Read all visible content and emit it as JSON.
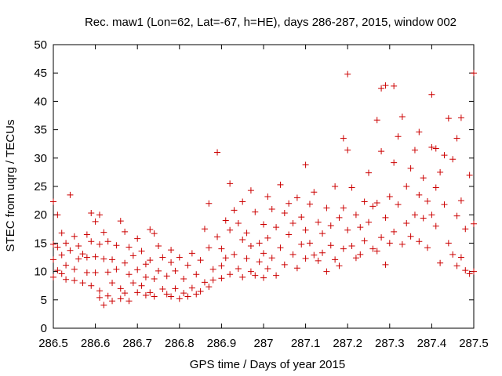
{
  "chart_data": {
    "type": "scatter",
    "title": "Rec. maw1 (Lon=62, Lat=-67, h=HE), days 286-287, 2015, window 002",
    "xlabel": "GPS time / Days of year 2015",
    "ylabel": "STEC from uqrg / TECUs",
    "xlim": [
      286.5,
      287.5
    ],
    "ylim": [
      0,
      50
    ],
    "xticks": [
      286.5,
      286.6,
      286.7,
      286.8,
      286.9,
      287,
      287.1,
      287.2,
      287.3,
      287.4,
      287.5
    ],
    "xtick_labels": [
      "286.5",
      "286.6",
      "286.7",
      "286.8",
      "286.9",
      "287",
      "287.1",
      "287.2",
      "287.3",
      "287.4",
      "287.5"
    ],
    "yticks": [
      0,
      5,
      10,
      15,
      20,
      25,
      30,
      35,
      40,
      45,
      50
    ],
    "ytick_labels": [
      "0",
      "5",
      "10",
      "15",
      "20",
      "25",
      "30",
      "35",
      "40",
      "45",
      "50"
    ],
    "grid": false,
    "legend": "none",
    "marker": "+",
    "color": "#cc0000",
    "series": [
      {
        "points": [
          [
            286.5,
            22.3
          ],
          [
            286.5,
            14.8
          ],
          [
            286.5,
            12.1
          ],
          [
            286.5,
            9.0
          ],
          [
            286.51,
            20.0
          ],
          [
            286.51,
            14.3
          ],
          [
            286.51,
            10.2
          ],
          [
            286.52,
            16.8
          ],
          [
            286.52,
            12.9
          ],
          [
            286.52,
            9.6
          ],
          [
            286.53,
            15.0
          ],
          [
            286.53,
            11.1
          ],
          [
            286.53,
            8.6
          ],
          [
            286.54,
            23.5
          ],
          [
            286.54,
            13.7
          ],
          [
            286.55,
            16.2
          ],
          [
            286.55,
            10.4
          ],
          [
            286.55,
            8.4
          ],
          [
            286.56,
            14.5
          ],
          [
            286.56,
            12.2
          ],
          [
            286.57,
            13.1
          ],
          [
            286.57,
            8.0
          ],
          [
            286.58,
            16.5
          ],
          [
            286.58,
            12.5
          ],
          [
            286.58,
            9.8
          ],
          [
            286.59,
            20.3
          ],
          [
            286.59,
            15.3
          ],
          [
            286.59,
            7.5
          ],
          [
            286.6,
            18.8
          ],
          [
            286.6,
            12.6
          ],
          [
            286.6,
            9.8
          ],
          [
            286.61,
            20.0
          ],
          [
            286.61,
            14.8
          ],
          [
            286.61,
            6.6
          ],
          [
            286.61,
            5.4
          ],
          [
            286.62,
            16.9
          ],
          [
            286.62,
            12.2
          ],
          [
            286.62,
            4.1
          ],
          [
            286.63,
            15.3
          ],
          [
            286.63,
            9.9
          ],
          [
            286.63,
            5.7
          ],
          [
            286.64,
            12.1
          ],
          [
            286.64,
            8.0
          ],
          [
            286.64,
            4.8
          ],
          [
            286.65,
            14.6
          ],
          [
            286.65,
            10.4
          ],
          [
            286.66,
            18.9
          ],
          [
            286.66,
            7.0
          ],
          [
            286.66,
            5.2
          ],
          [
            286.67,
            17.0
          ],
          [
            286.67,
            11.5
          ],
          [
            286.67,
            6.2
          ],
          [
            286.68,
            14.3
          ],
          [
            286.68,
            9.5
          ],
          [
            286.68,
            4.8
          ],
          [
            286.69,
            12.8
          ],
          [
            286.69,
            8.0
          ],
          [
            286.7,
            15.8
          ],
          [
            286.7,
            10.3
          ],
          [
            286.7,
            6.3
          ],
          [
            286.71,
            13.6
          ],
          [
            286.71,
            7.5
          ],
          [
            286.72,
            11.3
          ],
          [
            286.72,
            9.0
          ],
          [
            286.72,
            5.8
          ],
          [
            286.73,
            17.4
          ],
          [
            286.73,
            12.0
          ],
          [
            286.73,
            6.3
          ],
          [
            286.74,
            16.7
          ],
          [
            286.74,
            8.7
          ],
          [
            286.74,
            5.6
          ],
          [
            286.75,
            14.5
          ],
          [
            286.75,
            10.1
          ],
          [
            286.76,
            12.5
          ],
          [
            286.76,
            6.9
          ],
          [
            286.77,
            9.2
          ],
          [
            286.77,
            6.0
          ],
          [
            286.78,
            13.8
          ],
          [
            286.78,
            11.6
          ],
          [
            286.78,
            5.6
          ],
          [
            286.79,
            10.1
          ],
          [
            286.79,
            7.0
          ],
          [
            286.8,
            12.5
          ],
          [
            286.8,
            5.2
          ],
          [
            286.81,
            8.7
          ],
          [
            286.81,
            6.2
          ],
          [
            286.82,
            11.1
          ],
          [
            286.82,
            5.6
          ],
          [
            286.83,
            13.2
          ],
          [
            286.83,
            7.1
          ],
          [
            286.84,
            9.5
          ],
          [
            286.84,
            6.0
          ],
          [
            286.85,
            12.0
          ],
          [
            286.85,
            6.5
          ],
          [
            286.86,
            17.5
          ],
          [
            286.86,
            8.1
          ],
          [
            286.87,
            22.0
          ],
          [
            286.87,
            14.2
          ],
          [
            286.87,
            7.3
          ],
          [
            286.88,
            10.4
          ],
          [
            286.88,
            8.5
          ],
          [
            286.89,
            31.0
          ],
          [
            286.89,
            16.1
          ],
          [
            286.9,
            14.0
          ],
          [
            286.9,
            11.0
          ],
          [
            286.9,
            8.8
          ],
          [
            286.91,
            19.0
          ],
          [
            286.91,
            12.4
          ],
          [
            286.92,
            25.5
          ],
          [
            286.92,
            17.3
          ],
          [
            286.92,
            9.5
          ],
          [
            286.93,
            20.8
          ],
          [
            286.93,
            13.0
          ],
          [
            286.94,
            18.5
          ],
          [
            286.94,
            10.5
          ],
          [
            286.95,
            22.3
          ],
          [
            286.95,
            15.6
          ],
          [
            286.95,
            9.0
          ],
          [
            286.96,
            16.8
          ],
          [
            286.96,
            12.3
          ],
          [
            286.97,
            24.3
          ],
          [
            286.97,
            14.5
          ],
          [
            286.97,
            10.0
          ],
          [
            286.98,
            20.5
          ],
          [
            286.98,
            9.3
          ],
          [
            286.99,
            15.0
          ],
          [
            286.99,
            11.7
          ],
          [
            287.0,
            18.3
          ],
          [
            287.0,
            13.2
          ],
          [
            287.0,
            8.9
          ],
          [
            287.01,
            23.2
          ],
          [
            287.01,
            15.9
          ],
          [
            287.01,
            10.5
          ],
          [
            287.02,
            21.0
          ],
          [
            287.02,
            12.4
          ],
          [
            287.03,
            17.8
          ],
          [
            287.03,
            9.3
          ],
          [
            287.04,
            25.3
          ],
          [
            287.04,
            14.2
          ],
          [
            287.05,
            20.3
          ],
          [
            287.05,
            11.2
          ],
          [
            287.06,
            22.0
          ],
          [
            287.06,
            16.5
          ],
          [
            287.07,
            18.5
          ],
          [
            287.07,
            13.0
          ],
          [
            287.08,
            23.0
          ],
          [
            287.08,
            10.6
          ],
          [
            287.09,
            19.6
          ],
          [
            287.09,
            14.8
          ],
          [
            287.1,
            28.8
          ],
          [
            287.1,
            17.3
          ],
          [
            287.1,
            12.3
          ],
          [
            287.11,
            21.9
          ],
          [
            287.11,
            15.0
          ],
          [
            287.12,
            24.0
          ],
          [
            287.12,
            12.9
          ],
          [
            287.13,
            18.7
          ],
          [
            287.13,
            11.9
          ],
          [
            287.14,
            16.7
          ],
          [
            287.14,
            13.3
          ],
          [
            287.15,
            21.2
          ],
          [
            287.15,
            10.0
          ],
          [
            287.16,
            18.1
          ],
          [
            287.16,
            14.6
          ],
          [
            287.17,
            25.0
          ],
          [
            287.17,
            12.1
          ],
          [
            287.18,
            19.5
          ],
          [
            287.18,
            11.0
          ],
          [
            287.19,
            33.5
          ],
          [
            287.19,
            21.2
          ],
          [
            287.19,
            14.0
          ],
          [
            287.2,
            44.8
          ],
          [
            287.2,
            31.4
          ],
          [
            287.2,
            17.3
          ],
          [
            287.21,
            24.8
          ],
          [
            287.21,
            14.5
          ],
          [
            287.22,
            20.0
          ],
          [
            287.22,
            12.4
          ],
          [
            287.23,
            17.8
          ],
          [
            287.23,
            13.0
          ],
          [
            287.24,
            22.3
          ],
          [
            287.24,
            15.4
          ],
          [
            287.25,
            27.4
          ],
          [
            287.25,
            18.7
          ],
          [
            287.26,
            21.5
          ],
          [
            287.26,
            14.0
          ],
          [
            287.27,
            36.7
          ],
          [
            287.27,
            22.1
          ],
          [
            287.27,
            13.6
          ],
          [
            287.28,
            42.3
          ],
          [
            287.28,
            31.2
          ],
          [
            287.28,
            16.0
          ],
          [
            287.29,
            42.8
          ],
          [
            287.29,
            19.5
          ],
          [
            287.29,
            11.2
          ],
          [
            287.3,
            23.2
          ],
          [
            287.3,
            15.0
          ],
          [
            287.31,
            42.7
          ],
          [
            287.31,
            29.2
          ],
          [
            287.31,
            17.0
          ],
          [
            287.32,
            33.8
          ],
          [
            287.32,
            21.8
          ],
          [
            287.33,
            37.3
          ],
          [
            287.33,
            14.8
          ],
          [
            287.34,
            25.0
          ],
          [
            287.34,
            18.5
          ],
          [
            287.35,
            28.2
          ],
          [
            287.35,
            16.2
          ],
          [
            287.36,
            31.4
          ],
          [
            287.36,
            20.0
          ],
          [
            287.37,
            34.6
          ],
          [
            287.37,
            23.5
          ],
          [
            287.37,
            15.3
          ],
          [
            287.38,
            26.5
          ],
          [
            287.38,
            19.4
          ],
          [
            287.39,
            22.4
          ],
          [
            287.39,
            14.2
          ],
          [
            287.4,
            41.2
          ],
          [
            287.4,
            31.9
          ],
          [
            287.4,
            20.0
          ],
          [
            287.41,
            31.7
          ],
          [
            287.41,
            24.8
          ],
          [
            287.41,
            18.0
          ],
          [
            287.42,
            27.5
          ],
          [
            287.42,
            11.5
          ],
          [
            287.43,
            30.5
          ],
          [
            287.43,
            21.8
          ],
          [
            287.44,
            37.0
          ],
          [
            287.44,
            15.0
          ],
          [
            287.45,
            29.8
          ],
          [
            287.45,
            13.0
          ],
          [
            287.46,
            33.5
          ],
          [
            287.46,
            19.8
          ],
          [
            287.46,
            11.0
          ],
          [
            287.47,
            37.1
          ],
          [
            287.47,
            22.5
          ],
          [
            287.47,
            12.5
          ],
          [
            287.48,
            17.5
          ],
          [
            287.48,
            10.2
          ],
          [
            287.49,
            27.0
          ],
          [
            287.49,
            9.6
          ],
          [
            287.5,
            45.0
          ],
          [
            287.5,
            18.4
          ],
          [
            287.5,
            10.0
          ]
        ]
      }
    ]
  }
}
